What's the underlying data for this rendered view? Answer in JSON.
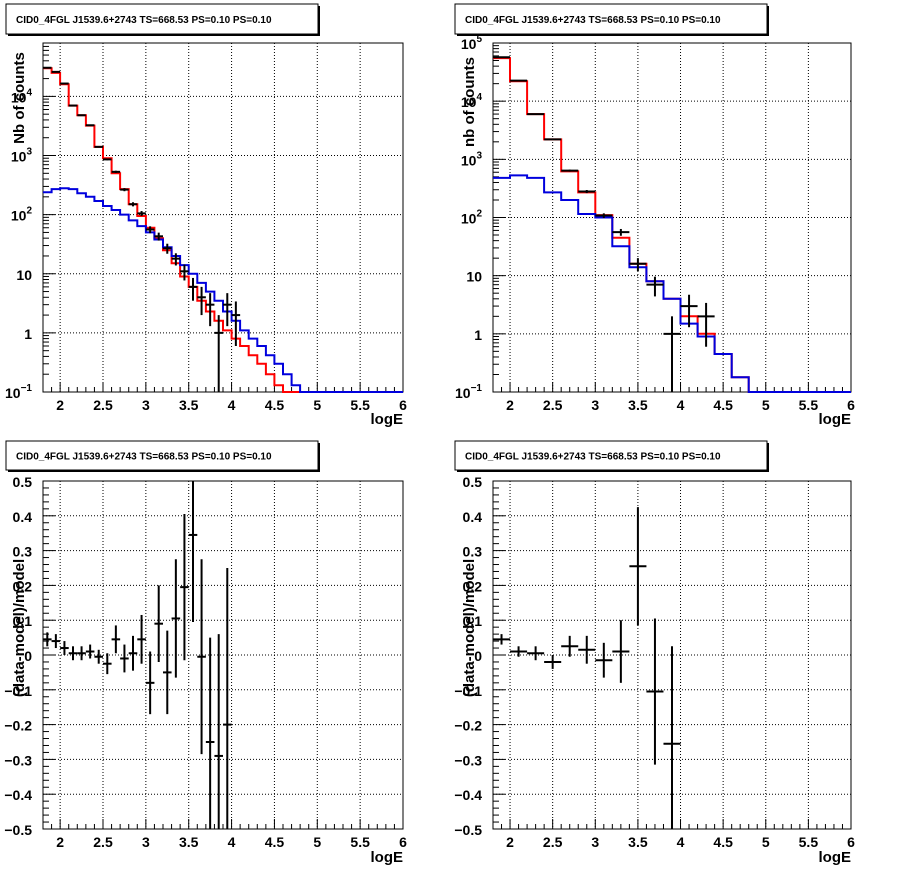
{
  "colors": {
    "data": "#000000",
    "total_model": "#ff0000",
    "source_model": "#0000dd",
    "grid": "#000000",
    "background": "#ffffff"
  },
  "chart_data": [
    {
      "type": "line",
      "title": "CID0_4FGL J1539.6+2743 TS=668.53 PS=0.10 PS=0.10",
      "xlabel": "logE",
      "ylabel": "Nb of counts",
      "log_y": true,
      "xlim": [
        1.8,
        6
      ],
      "ylim": [
        0.1,
        80000
      ],
      "grid": true,
      "x_ticks": [
        2,
        2.5,
        3,
        3.5,
        4,
        4.5,
        5,
        5.5,
        6
      ],
      "x_tick_labels": [
        "2",
        "2.5",
        "3",
        "3.5",
        "4",
        "4.5",
        "5",
        "5.5",
        "6"
      ],
      "y_ticks": [
        0.1,
        1,
        10,
        100,
        1000,
        10000
      ],
      "y_tick_labels": [
        {
          "base": "10",
          "exp": "−1"
        },
        {
          "base": "1",
          "exp": ""
        },
        {
          "base": "10",
          "exp": ""
        },
        {
          "base": "10",
          "exp": "2"
        },
        {
          "base": "10",
          "exp": "3"
        },
        {
          "base": "10",
          "exp": "4"
        }
      ],
      "bin_edges": [
        1.8,
        1.9,
        2.0,
        2.1,
        2.2,
        2.3,
        2.4,
        2.5,
        2.6,
        2.7,
        2.8,
        2.9,
        3.0,
        3.1,
        3.2,
        3.3,
        3.4,
        3.5,
        3.6,
        3.7,
        3.8,
        3.9,
        4.0,
        4.1,
        4.2,
        4.3,
        4.4,
        4.5,
        4.6,
        4.7,
        4.8,
        4.9,
        5.0,
        5.1,
        5.2,
        5.3,
        5.4,
        5.5,
        5.6,
        5.7,
        5.8,
        5.9,
        6.0
      ],
      "series": [
        {
          "role": "total_model",
          "values": [
            30000,
            25000,
            16000,
            7000,
            4800,
            3200,
            1400,
            900,
            500,
            270,
            150,
            95,
            60,
            40,
            25,
            15,
            9,
            6,
            3.5,
            2.3,
            1.6,
            1.1,
            0.8,
            0.6,
            0.42,
            0.3,
            0.2,
            0.13,
            0.1,
            0.1,
            0.1,
            0.1,
            0.1,
            0.1,
            0.1,
            0.1,
            0.1,
            0.1,
            0.1,
            0.1,
            0.1,
            0.1
          ]
        },
        {
          "role": "source_model",
          "values": [
            240,
            270,
            280,
            270,
            230,
            200,
            170,
            140,
            120,
            100,
            80,
            64,
            50,
            38,
            28,
            20,
            14,
            10,
            7,
            5,
            3.5,
            2.3,
            1.6,
            1.1,
            0.8,
            0.6,
            0.42,
            0.3,
            0.2,
            0.13,
            0.1,
            0.1,
            0.1,
            0.1,
            0.1,
            0.1,
            0.1,
            0.1,
            0.1,
            0.1,
            0.1,
            0.1
          ]
        },
        {
          "role": "data",
          "points": [
            {
              "x": 1.85,
              "y": 30500,
              "err": 200
            },
            {
              "x": 1.95,
              "y": 26000,
              "err": 180
            },
            {
              "x": 2.05,
              "y": 16500,
              "err": 140
            },
            {
              "x": 2.15,
              "y": 7000,
              "err": 90
            },
            {
              "x": 2.25,
              "y": 4800,
              "err": 70
            },
            {
              "x": 2.35,
              "y": 3250,
              "err": 57
            },
            {
              "x": 2.45,
              "y": 1400,
              "err": 37
            },
            {
              "x": 2.55,
              "y": 860,
              "err": 29
            },
            {
              "x": 2.65,
              "y": 530,
              "err": 23
            },
            {
              "x": 2.75,
              "y": 265,
              "err": 16
            },
            {
              "x": 2.85,
              "y": 150,
              "err": 12
            },
            {
              "x": 2.95,
              "y": 105,
              "err": 10
            },
            {
              "x": 3.05,
              "y": 56,
              "err": 7.5
            },
            {
              "x": 3.15,
              "y": 43,
              "err": 6.6
            },
            {
              "x": 3.25,
              "y": 27,
              "err": 5.2
            },
            {
              "x": 3.35,
              "y": 18,
              "err": 4.2
            },
            {
              "x": 3.45,
              "y": 11,
              "err": 3.3
            },
            {
              "x": 3.55,
              "y": 6,
              "err": 2.5
            },
            {
              "x": 3.65,
              "y": 4,
              "err": 2.0
            },
            {
              "x": 3.75,
              "y": 3,
              "err": 1.7
            },
            {
              "x": 3.85,
              "y": 1,
              "err": 1.0
            },
            {
              "x": 3.95,
              "y": 3,
              "err": 1.7
            },
            {
              "x": 4.05,
              "y": 2,
              "err": 1.4
            }
          ]
        }
      ]
    },
    {
      "type": "line",
      "title": "CID0_4FGL J1539.6+2743 TS=668.53 PS=0.10 PS=0.10",
      "xlabel": "logE",
      "ylabel": "nb of counts",
      "log_y": true,
      "xlim": [
        1.8,
        6
      ],
      "ylim": [
        0.1,
        100000
      ],
      "grid": true,
      "x_ticks": [
        2,
        2.5,
        3,
        3.5,
        4,
        4.5,
        5,
        5.5,
        6
      ],
      "x_tick_labels": [
        "2",
        "2.5",
        "3",
        "3.5",
        "4",
        "4.5",
        "5",
        "5.5",
        "6"
      ],
      "y_ticks": [
        0.1,
        1,
        10,
        100,
        1000,
        10000,
        100000
      ],
      "y_tick_labels": [
        {
          "base": "10",
          "exp": "−1"
        },
        {
          "base": "1",
          "exp": ""
        },
        {
          "base": "10",
          "exp": ""
        },
        {
          "base": "10",
          "exp": "2"
        },
        {
          "base": "10",
          "exp": "3"
        },
        {
          "base": "10",
          "exp": "4"
        },
        {
          "base": "10",
          "exp": "5"
        }
      ],
      "bin_edges": [
        1.8,
        2.0,
        2.2,
        2.4,
        2.6,
        2.8,
        3.0,
        3.2,
        3.4,
        3.6,
        3.8,
        4.0,
        4.2,
        4.4,
        4.6,
        4.8,
        5.0,
        5.2,
        5.4,
        5.6,
        5.8,
        6.0
      ],
      "series": [
        {
          "role": "total_model",
          "values": [
            55000,
            22000,
            6000,
            2200,
            620,
            270,
            110,
            45,
            16,
            8,
            4,
            2,
            1,
            0.45,
            0.18,
            0.1,
            0.1,
            0.1,
            0.1,
            0.1,
            0.1
          ]
        },
        {
          "role": "source_model",
          "values": [
            480,
            530,
            480,
            270,
            200,
            115,
            100,
            32,
            14,
            8,
            4,
            1.5,
            0.9,
            0.45,
            0.18,
            0.1,
            0.1,
            0.1,
            0.1,
            0.1,
            0.1
          ]
        },
        {
          "role": "data",
          "points": [
            {
              "x": 1.9,
              "y": 57000,
              "err": 240
            },
            {
              "x": 2.1,
              "y": 22500,
              "err": 150
            },
            {
              "x": 2.3,
              "y": 6000,
              "err": 77
            },
            {
              "x": 2.5,
              "y": 2200,
              "err": 47
            },
            {
              "x": 2.7,
              "y": 640,
              "err": 25
            },
            {
              "x": 2.9,
              "y": 280,
              "err": 17
            },
            {
              "x": 3.1,
              "y": 108,
              "err": 10
            },
            {
              "x": 3.3,
              "y": 56,
              "err": 7.5
            },
            {
              "x": 3.5,
              "y": 16,
              "err": 4
            },
            {
              "x": 3.7,
              "y": 7,
              "err": 2.6
            },
            {
              "x": 3.9,
              "y": 1,
              "err": 1.0
            },
            {
              "x": 4.1,
              "y": 3,
              "err": 1.7
            },
            {
              "x": 4.3,
              "y": 2,
              "err": 1.4
            }
          ]
        }
      ]
    },
    {
      "type": "scatter",
      "title": "CID0_4FGL J1539.6+2743 TS=668.53 PS=0.10 PS=0.10",
      "xlabel": "logE",
      "ylabel": "(data-model)/model",
      "xlim": [
        1.8,
        6
      ],
      "ylim": [
        -0.5,
        0.5
      ],
      "grid": true,
      "x_ticks": [
        2,
        2.5,
        3,
        3.5,
        4,
        4.5,
        5,
        5.5,
        6
      ],
      "x_tick_labels": [
        "2",
        "2.5",
        "3",
        "3.5",
        "4",
        "4.5",
        "5",
        "5.5",
        "6"
      ],
      "y_ticks": [
        -0.5,
        -0.4,
        -0.3,
        -0.2,
        -0.1,
        0,
        0.1,
        0.2,
        0.3,
        0.4,
        0.5
      ],
      "y_tick_labels": [
        "−0.5",
        "−0.4",
        "−0.3",
        "−0.2",
        "−0.1",
        "0",
        "0.1",
        "0.2",
        "0.3",
        "0.4",
        "0.5"
      ],
      "bin_width": 0.1,
      "points": [
        {
          "x": 1.85,
          "y": 0.045,
          "err": 0.02
        },
        {
          "x": 1.95,
          "y": 0.04,
          "err": 0.02
        },
        {
          "x": 2.05,
          "y": 0.02,
          "err": 0.02
        },
        {
          "x": 2.15,
          "y": 0.005,
          "err": 0.02
        },
        {
          "x": 2.25,
          "y": 0.005,
          "err": 0.02
        },
        {
          "x": 2.35,
          "y": 0.01,
          "err": 0.02
        },
        {
          "x": 2.45,
          "y": -0.005,
          "err": 0.02
        },
        {
          "x": 2.55,
          "y": -0.025,
          "err": 0.03
        },
        {
          "x": 2.65,
          "y": 0.045,
          "err": 0.04
        },
        {
          "x": 2.75,
          "y": -0.01,
          "err": 0.04
        },
        {
          "x": 2.85,
          "y": 0.005,
          "err": 0.05
        },
        {
          "x": 2.95,
          "y": 0.045,
          "err": 0.07
        },
        {
          "x": 3.05,
          "y": -0.08,
          "err": 0.09
        },
        {
          "x": 3.15,
          "y": 0.09,
          "err": 0.11
        },
        {
          "x": 3.25,
          "y": -0.05,
          "err": 0.12
        },
        {
          "x": 3.35,
          "y": 0.105,
          "err": 0.17
        },
        {
          "x": 3.45,
          "y": 0.195,
          "err": 0.21
        },
        {
          "x": 3.55,
          "y": 0.345,
          "err": 0.25
        },
        {
          "x": 3.65,
          "y": -0.005,
          "err": 0.28
        },
        {
          "x": 3.75,
          "y": -0.25,
          "err": 0.3
        },
        {
          "x": 3.85,
          "y": -0.29,
          "err": 0.35
        },
        {
          "x": 3.95,
          "y": -0.2,
          "err": 0.45
        }
      ]
    },
    {
      "type": "scatter",
      "title": "CID0_4FGL J1539.6+2743 TS=668.53 PS=0.10 PS=0.10",
      "xlabel": "logE",
      "ylabel": "(data-model)/model",
      "xlim": [
        1.8,
        6
      ],
      "ylim": [
        -0.5,
        0.5
      ],
      "grid": true,
      "x_ticks": [
        2,
        2.5,
        3,
        3.5,
        4,
        4.5,
        5,
        5.5,
        6
      ],
      "x_tick_labels": [
        "2",
        "2.5",
        "3",
        "3.5",
        "4",
        "4.5",
        "5",
        "5.5",
        "6"
      ],
      "y_ticks": [
        -0.5,
        -0.4,
        -0.3,
        -0.2,
        -0.1,
        0,
        0.1,
        0.2,
        0.3,
        0.4,
        0.5
      ],
      "y_tick_labels": [
        "−0.5",
        "−0.4",
        "−0.3",
        "−0.2",
        "−0.1",
        "0",
        "0.1",
        "0.2",
        "0.3",
        "0.4",
        "0.5"
      ],
      "bin_width": 0.2,
      "points": [
        {
          "x": 1.9,
          "y": 0.045,
          "err": 0.015
        },
        {
          "x": 2.1,
          "y": 0.01,
          "err": 0.015
        },
        {
          "x": 2.3,
          "y": 0.005,
          "err": 0.02
        },
        {
          "x": 2.5,
          "y": -0.02,
          "err": 0.02
        },
        {
          "x": 2.7,
          "y": 0.025,
          "err": 0.03
        },
        {
          "x": 2.9,
          "y": 0.015,
          "err": 0.04
        },
        {
          "x": 3.1,
          "y": -0.015,
          "err": 0.05
        },
        {
          "x": 3.3,
          "y": 0.01,
          "err": 0.09
        },
        {
          "x": 3.5,
          "y": 0.255,
          "err": 0.17
        },
        {
          "x": 3.7,
          "y": -0.105,
          "err": 0.21
        },
        {
          "x": 3.9,
          "y": -0.255,
          "err": 0.28
        }
      ]
    }
  ]
}
